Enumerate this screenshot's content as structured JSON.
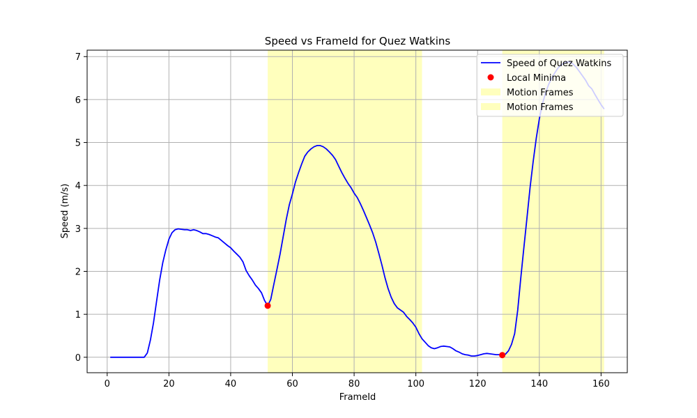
{
  "chart_data": {
    "type": "line",
    "title": "Speed vs FrameId for Quez Watkins",
    "xlabel": "FrameId",
    "ylabel": "Speed (m/s)",
    "xlim": [
      -6.5,
      168.5
    ],
    "ylim": [
      -0.36,
      7.15
    ],
    "xticks": [
      0,
      20,
      40,
      60,
      80,
      100,
      120,
      140,
      160
    ],
    "yticks": [
      0,
      1,
      2,
      3,
      4,
      5,
      6,
      7
    ],
    "grid": true,
    "legend_placement": "upper right",
    "colors": {
      "line": "#0000ff",
      "minima": "#ff0000",
      "motion": "#ffff99"
    },
    "series": [
      {
        "name": "Speed of Quez Watkins",
        "kind": "line",
        "x": [
          1,
          12,
          13,
          14,
          15,
          16,
          17,
          18,
          19,
          20,
          21,
          22,
          23,
          24,
          25,
          26,
          27,
          28,
          29,
          30,
          31,
          32,
          33,
          34,
          35,
          36,
          37,
          38,
          39,
          40,
          41,
          42,
          43,
          44,
          45,
          46,
          47,
          48,
          49,
          50,
          51,
          52,
          53,
          54,
          55,
          56,
          57,
          58,
          59,
          60,
          61,
          62,
          63,
          64,
          65,
          66,
          67,
          68,
          69,
          70,
          71,
          72,
          73,
          74,
          75,
          76,
          77,
          78,
          79,
          80,
          81,
          82,
          83,
          84,
          85,
          86,
          87,
          88,
          89,
          90,
          91,
          92,
          93,
          94,
          95,
          96,
          97,
          98,
          99,
          100,
          101,
          102,
          103,
          104,
          105,
          106,
          107,
          108,
          109,
          110,
          111,
          112,
          113,
          114,
          115,
          116,
          117,
          118,
          119,
          120,
          121,
          122,
          123,
          124,
          125,
          126,
          127,
          128,
          129,
          130,
          131,
          132,
          133,
          134,
          135,
          136,
          137,
          138,
          139,
          140,
          141,
          142,
          143,
          144,
          145,
          146,
          147,
          148,
          149,
          150,
          151,
          152,
          153,
          154,
          155,
          156,
          157,
          158,
          159,
          160,
          161
        ],
        "values": [
          0,
          0,
          0.1,
          0.4,
          0.8,
          1.3,
          1.8,
          2.2,
          2.5,
          2.75,
          2.9,
          2.97,
          2.99,
          2.98,
          2.97,
          2.97,
          2.95,
          2.97,
          2.95,
          2.92,
          2.88,
          2.88,
          2.86,
          2.83,
          2.8,
          2.78,
          2.72,
          2.66,
          2.6,
          2.55,
          2.47,
          2.4,
          2.33,
          2.22,
          2.02,
          1.9,
          1.8,
          1.68,
          1.6,
          1.5,
          1.32,
          1.2,
          1.35,
          1.7,
          2.05,
          2.4,
          2.8,
          3.2,
          3.55,
          3.8,
          4.08,
          4.3,
          4.5,
          4.68,
          4.78,
          4.85,
          4.9,
          4.93,
          4.93,
          4.9,
          4.85,
          4.78,
          4.7,
          4.6,
          4.45,
          4.3,
          4.17,
          4.05,
          3.95,
          3.82,
          3.72,
          3.58,
          3.42,
          3.25,
          3.08,
          2.9,
          2.68,
          2.42,
          2.15,
          1.85,
          1.6,
          1.4,
          1.25,
          1.15,
          1.1,
          1.05,
          0.95,
          0.88,
          0.8,
          0.7,
          0.55,
          0.43,
          0.35,
          0.27,
          0.22,
          0.2,
          0.22,
          0.25,
          0.26,
          0.25,
          0.24,
          0.2,
          0.15,
          0.12,
          0.08,
          0.06,
          0.05,
          0.03,
          0.03,
          0.04,
          0.06,
          0.08,
          0.09,
          0.08,
          0.07,
          0.06,
          0.06,
          0.05,
          0.07,
          0.15,
          0.3,
          0.55,
          1.1,
          1.85,
          2.55,
          3.25,
          3.95,
          4.55,
          5.1,
          5.55,
          5.9,
          6.15,
          6.35,
          6.5,
          6.62,
          6.73,
          6.8,
          6.85,
          6.88,
          6.87,
          6.82,
          6.75,
          6.65,
          6.55,
          6.45,
          6.32,
          6.25,
          6.12,
          6.0,
          5.88,
          5.78
        ]
      },
      {
        "name": "Local Minima",
        "kind": "scatter",
        "x": [
          52,
          128
        ],
        "values": [
          1.2,
          0.05
        ]
      }
    ],
    "motion_frames": [
      {
        "name": "Motion Frames",
        "x_start": 52,
        "x_end": 102
      },
      {
        "name": "Motion Frames",
        "x_start": 128,
        "x_end": 161
      }
    ]
  }
}
